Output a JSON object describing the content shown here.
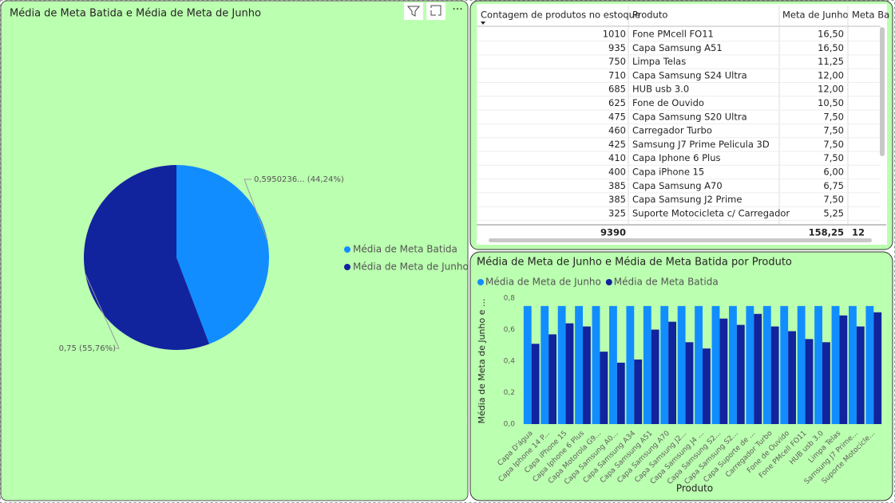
{
  "chart_data": [
    {
      "type": "pie",
      "title": "Média de Meta Batida e Média de Meta de Junho",
      "categories": [
        "Média de Meta Batida",
        "Média de Meta de Junho"
      ],
      "values": [
        0.5950236,
        0.75
      ],
      "value_labels": [
        "0,5950236... (44,24%)",
        "0,75 (55,76%)"
      ],
      "colors": [
        "#118DFF",
        "#12239E"
      ],
      "legend": "right"
    },
    {
      "type": "bar",
      "title": "Média de Meta de Junho e Média de Meta Batida por Produto",
      "x_label": "Produto",
      "y_label": "Média de Meta de Junho e ...",
      "categories": [
        "Capa D'água",
        "Capa Iphone 14 P...",
        "Capa iPhone 15",
        "Capa Iphone 6 Plus",
        "Capa Motorola G9...",
        "Capa Samsung A0...",
        "Capa Samsung A34",
        "Capa Samsung A51",
        "Capa Samsung A70",
        "Capa Samsung J2...",
        "Capa Samsung J4 ...",
        "Capa Samsung S2...",
        "Capa Samsung S2...",
        "Capa Suporte de ...",
        "Carregador Turbo",
        "Fone de Ouvido",
        "Fone PMcell FO11",
        "HUB usb 3.0",
        "Limpa Telas",
        "Samsung J7 Prime...",
        "Suporte Motocicle..."
      ],
      "series": [
        {
          "name": "Média de Meta de Junho",
          "color": "#118DFF",
          "values": [
            0.75,
            0.75,
            0.75,
            0.75,
            0.75,
            0.75,
            0.75,
            0.75,
            0.75,
            0.75,
            0.75,
            0.75,
            0.75,
            0.75,
            0.75,
            0.75,
            0.75,
            0.75,
            0.75,
            0.75,
            0.75
          ]
        },
        {
          "name": "Média de Meta Batida",
          "color": "#12239E",
          "values": [
            0.51,
            0.57,
            0.64,
            0.62,
            0.46,
            0.39,
            0.41,
            0.6,
            0.65,
            0.52,
            0.48,
            0.67,
            0.63,
            0.7,
            0.62,
            0.59,
            0.54,
            0.52,
            0.69,
            0.62,
            0.71
          ]
        }
      ],
      "ylim": [
        0,
        0.8
      ],
      "yticks": [
        {
          "value": 0,
          "label": "0,0"
        },
        {
          "value": 0.2,
          "label": "0,2"
        },
        {
          "value": 0.4,
          "label": "0,4"
        },
        {
          "value": 0.6,
          "label": "0,6"
        },
        {
          "value": 0.8,
          "label": "0,8"
        }
      ],
      "legend": "top"
    }
  ],
  "table": {
    "headers": [
      "Contagem de produtos no estoque",
      "Produto",
      "Meta de Junho",
      "Meta Ba"
    ],
    "rows": [
      [
        "1010",
        "Fone PMcell FO11",
        "16,50"
      ],
      [
        "935",
        "Capa Samsung A51",
        "16,50"
      ],
      [
        "750",
        "Limpa Telas",
        "11,25"
      ],
      [
        "710",
        "Capa Samsung S24 Ultra",
        "12,00"
      ],
      [
        "685",
        "HUB usb 3.0",
        "12,00"
      ],
      [
        "625",
        "Fone de Ouvido",
        "10,50"
      ],
      [
        "475",
        "Capa Samsung S20 Ultra",
        "7,50"
      ],
      [
        "460",
        "Carregador Turbo",
        "7,50"
      ],
      [
        "425",
        "Samsung J7 Prime Pelicula 3D",
        "7,50"
      ],
      [
        "410",
        "Capa Iphone 6 Plus",
        "7,50"
      ],
      [
        "400",
        "Capa iPhone 15",
        "6,00"
      ],
      [
        "385",
        "Capa Samsung A70",
        "6,75"
      ],
      [
        "385",
        "Capa Samsung J2 Prime",
        "7,50"
      ],
      [
        "325",
        "Suporte Motocicleta c/ Carregador",
        "5,25"
      ]
    ],
    "totals": [
      "9390",
      "158,25",
      "12"
    ]
  }
}
